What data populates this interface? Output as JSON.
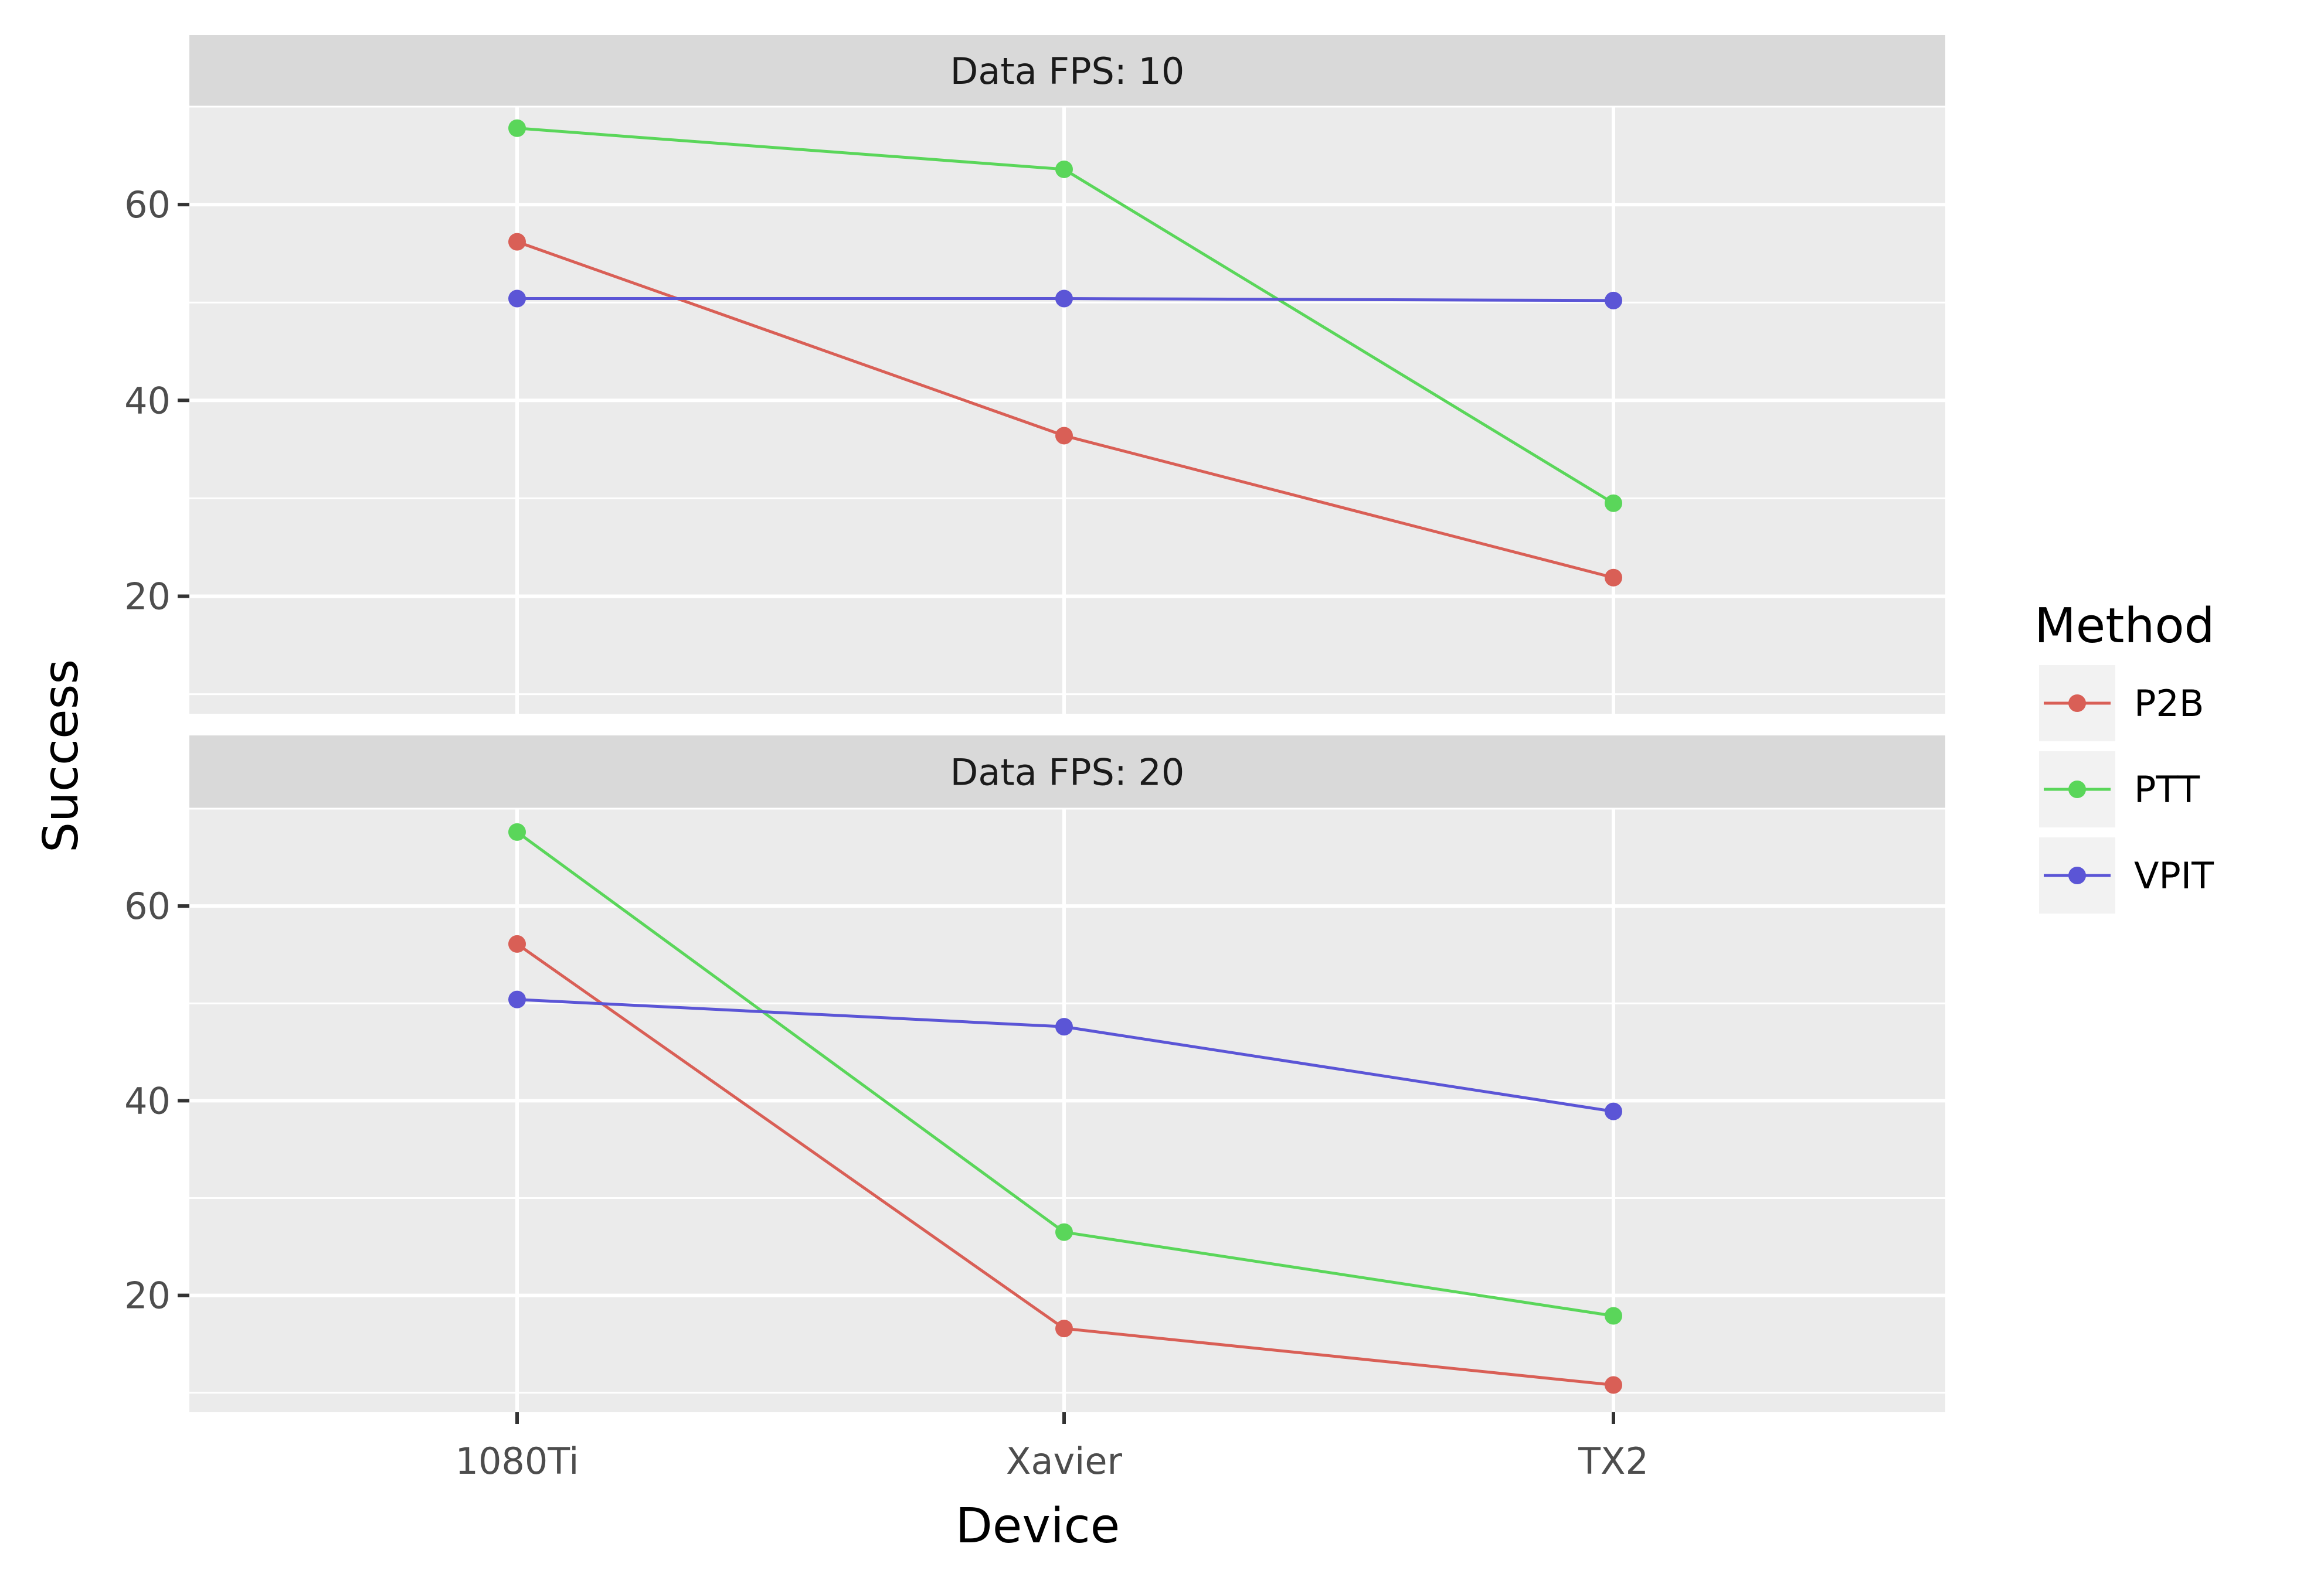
{
  "chart_data": {
    "type": "line",
    "xlabel": "Device",
    "ylabel": "Success",
    "categories": [
      "1080Ti",
      "Xavier",
      "TX2"
    ],
    "ylim": [
      8,
      70
    ],
    "yticks": [
      20,
      40,
      60
    ],
    "y_minor_ticks": [
      10,
      30,
      50,
      70
    ],
    "grid": true,
    "legend": {
      "title": "Method",
      "position": "right",
      "entries": [
        "P2B",
        "PTT",
        "VPIT"
      ]
    },
    "colors": {
      "P2B": "#d95f56",
      "PTT": "#5ad65a",
      "VPIT": "#5b55d6"
    },
    "facets": [
      {
        "label": "Data FPS: 10",
        "series": [
          {
            "name": "P2B",
            "values": [
              56.2,
              36.4,
              21.9
            ]
          },
          {
            "name": "PTT",
            "values": [
              67.8,
              63.6,
              29.5
            ]
          },
          {
            "name": "VPIT",
            "values": [
              50.4,
              50.4,
              50.2
            ]
          }
        ]
      },
      {
        "label": "Data FPS: 20",
        "series": [
          {
            "name": "P2B",
            "values": [
              56.1,
              16.6,
              10.8
            ]
          },
          {
            "name": "PTT",
            "values": [
              67.6,
              26.5,
              17.9
            ]
          },
          {
            "name": "VPIT",
            "values": [
              50.4,
              47.6,
              38.9
            ]
          }
        ]
      }
    ]
  }
}
